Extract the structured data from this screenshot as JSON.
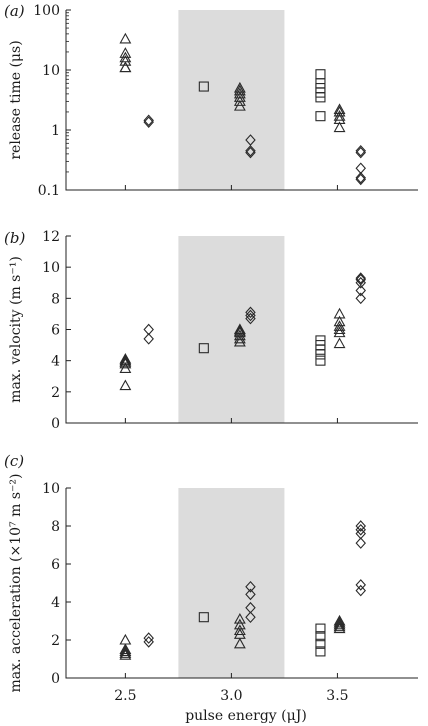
{
  "figure": {
    "xlabel": "pulse energy (μJ)",
    "x_ticks": [
      "2.5",
      "3.0",
      "3.5"
    ],
    "x_tick_values": [
      2.5,
      3.0,
      3.5
    ],
    "shaded_color": "#dcdcdc",
    "marker_color": "#2a2a2a"
  },
  "chart_data": [
    {
      "type": "scatter",
      "panel_label": "(a)",
      "ylabel": "release time (μs)",
      "yscale": "log",
      "ylim": [
        0.1,
        100
      ],
      "xlim": [
        2.22,
        3.88
      ],
      "y_ticks": [
        "0.1",
        "1",
        "10",
        "100"
      ],
      "y_tick_values": [
        0.1,
        1,
        10,
        100
      ],
      "shaded_x": [
        2.75,
        3.25
      ],
      "series": [
        {
          "marker": "triangle",
          "points": [
            [
              2.5,
              11
            ],
            [
              2.5,
              11
            ],
            [
              2.5,
              14
            ],
            [
              2.5,
              16
            ],
            [
              2.5,
              19
            ],
            [
              2.5,
              33
            ],
            [
              3.04,
              2.5
            ],
            [
              3.04,
              3.0
            ],
            [
              3.04,
              3.5
            ],
            [
              3.04,
              4.0
            ],
            [
              3.04,
              4.5
            ],
            [
              3.04,
              5.0
            ],
            [
              3.51,
              1.1
            ],
            [
              3.51,
              1.5
            ],
            [
              3.51,
              1.7
            ],
            [
              3.51,
              2.0
            ],
            [
              3.51,
              2.2
            ]
          ]
        },
        {
          "marker": "square",
          "points": [
            [
              2.87,
              5.3
            ],
            [
              3.42,
              1.7
            ],
            [
              3.42,
              3.5
            ],
            [
              3.42,
              4.2
            ],
            [
              3.42,
              5.0
            ],
            [
              3.42,
              6.0
            ],
            [
              3.42,
              8.5
            ]
          ]
        },
        {
          "marker": "diamond",
          "points": [
            [
              2.61,
              1.35
            ],
            [
              2.61,
              1.45
            ],
            [
              3.09,
              0.42
            ],
            [
              3.09,
              0.45
            ],
            [
              3.09,
              0.68
            ],
            [
              3.61,
              0.15
            ],
            [
              3.61,
              0.16
            ],
            [
              3.61,
              0.23
            ],
            [
              3.61,
              0.42
            ],
            [
              3.61,
              0.45
            ]
          ]
        }
      ]
    },
    {
      "type": "scatter",
      "panel_label": "(b)",
      "ylabel": "max. velocity (m s⁻¹)",
      "yscale": "linear",
      "ylim": [
        0,
        12
      ],
      "xlim": [
        2.22,
        3.88
      ],
      "y_ticks": [
        "0",
        "2",
        "4",
        "6",
        "8",
        "10",
        "12"
      ],
      "y_tick_values": [
        0,
        2,
        4,
        6,
        8,
        10,
        12
      ],
      "shaded_x": [
        2.75,
        3.25
      ],
      "series": [
        {
          "marker": "triangle",
          "points": [
            [
              2.5,
              2.4
            ],
            [
              2.5,
              3.5
            ],
            [
              2.5,
              3.8
            ],
            [
              2.5,
              3.9
            ],
            [
              2.5,
              4.0
            ],
            [
              2.5,
              4.1
            ],
            [
              3.04,
              5.2
            ],
            [
              3.04,
              5.4
            ],
            [
              3.04,
              5.6
            ],
            [
              3.04,
              5.8
            ],
            [
              3.04,
              5.9
            ],
            [
              3.04,
              6.0
            ],
            [
              3.51,
              5.1
            ],
            [
              3.51,
              5.8
            ],
            [
              3.51,
              6.0
            ],
            [
              3.51,
              6.2
            ],
            [
              3.51,
              6.5
            ],
            [
              3.51,
              7.0
            ]
          ]
        },
        {
          "marker": "square",
          "points": [
            [
              2.87,
              4.8
            ],
            [
              3.42,
              4.0
            ],
            [
              3.42,
              4.4
            ],
            [
              3.42,
              4.7
            ],
            [
              3.42,
              5.0
            ],
            [
              3.42,
              5.3
            ]
          ]
        },
        {
          "marker": "diamond",
          "points": [
            [
              2.61,
              5.4
            ],
            [
              2.61,
              6.0
            ],
            [
              3.09,
              6.7
            ],
            [
              3.09,
              6.9
            ],
            [
              3.09,
              7.1
            ],
            [
              3.61,
              8.0
            ],
            [
              3.61,
              8.5
            ],
            [
              3.61,
              9.0
            ],
            [
              3.61,
              9.2
            ],
            [
              3.61,
              9.3
            ]
          ]
        }
      ]
    },
    {
      "type": "scatter",
      "panel_label": "(c)",
      "ylabel": "max. acceleration (×10⁷ m s⁻²)",
      "yscale": "linear",
      "ylim": [
        0,
        10
      ],
      "xlim": [
        2.22,
        3.88
      ],
      "y_ticks": [
        "0",
        "2",
        "4",
        "6",
        "8",
        "10"
      ],
      "y_tick_values": [
        0,
        2,
        4,
        6,
        8,
        10
      ],
      "shaded_x": [
        2.75,
        3.25
      ],
      "series": [
        {
          "marker": "triangle",
          "points": [
            [
              2.5,
              1.2
            ],
            [
              2.5,
              1.3
            ],
            [
              2.5,
              1.4
            ],
            [
              2.5,
              1.5
            ],
            [
              2.5,
              2.0
            ],
            [
              3.04,
              1.8
            ],
            [
              3.04,
              2.3
            ],
            [
              3.04,
              2.5
            ],
            [
              3.04,
              2.8
            ],
            [
              3.04,
              3.1
            ],
            [
              3.51,
              2.6
            ],
            [
              3.51,
              2.7
            ],
            [
              3.51,
              2.8
            ],
            [
              3.51,
              2.9
            ],
            [
              3.51,
              3.0
            ]
          ]
        },
        {
          "marker": "square",
          "points": [
            [
              2.87,
              3.2
            ],
            [
              3.42,
              1.4
            ],
            [
              3.42,
              1.8
            ],
            [
              3.42,
              2.2
            ],
            [
              3.42,
              2.6
            ]
          ]
        },
        {
          "marker": "diamond",
          "points": [
            [
              2.61,
              1.9
            ],
            [
              2.61,
              2.1
            ],
            [
              3.09,
              3.2
            ],
            [
              3.09,
              3.7
            ],
            [
              3.09,
              4.4
            ],
            [
              3.09,
              4.8
            ],
            [
              3.61,
              4.6
            ],
            [
              3.61,
              4.9
            ],
            [
              3.61,
              7.1
            ],
            [
              3.61,
              7.6
            ],
            [
              3.61,
              7.8
            ],
            [
              3.61,
              8.0
            ]
          ]
        }
      ]
    }
  ]
}
